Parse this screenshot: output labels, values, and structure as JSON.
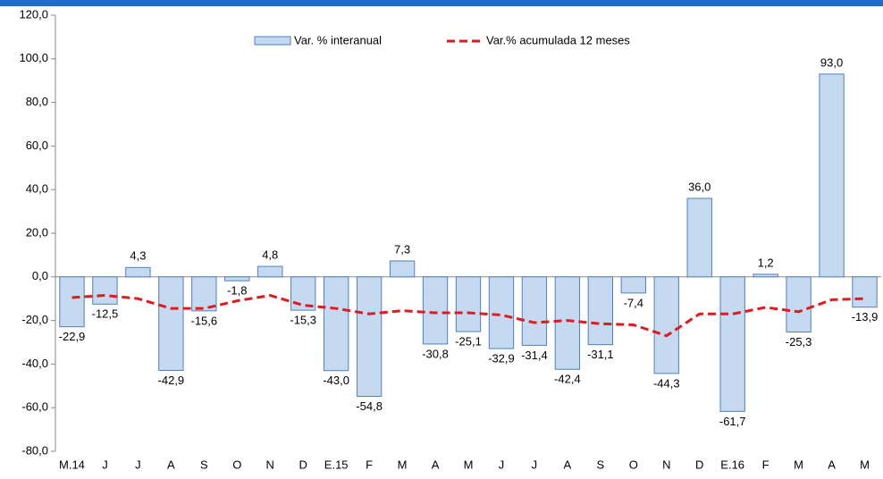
{
  "chart_data": {
    "type": "bar",
    "categories": [
      "M.14",
      "J",
      "J",
      "A",
      "S",
      "O",
      "N",
      "D",
      "E.15",
      "F",
      "M",
      "A",
      "M",
      "J",
      "J",
      "A",
      "S",
      "O",
      "N",
      "D",
      "E.16",
      "F",
      "M",
      "A",
      "M"
    ],
    "series": [
      {
        "name": "Var. % interanual",
        "type": "bar",
        "color": "#c5d9f1",
        "border": "#4f81bd",
        "values": [
          -22.9,
          -12.5,
          4.3,
          -42.9,
          -15.6,
          -1.8,
          4.8,
          -15.3,
          -43.0,
          -54.8,
          7.3,
          -30.8,
          -25.1,
          -32.9,
          -31.4,
          -42.4,
          -31.1,
          -7.4,
          -44.3,
          36.0,
          -61.7,
          1.2,
          -25.3,
          93.0,
          -13.9
        ],
        "value_labels": [
          "-22,9",
          "-12,5",
          "4,3",
          "-42,9",
          "-15,6",
          "-1,8",
          "4,8",
          "-15,3",
          "-43,0",
          "-54,8",
          "7,3",
          "-30,8",
          "-25,1",
          "-32,9",
          "-31,4",
          "-42,4",
          "-31,1",
          "-7,4",
          "-44,3",
          "36,0",
          "-61,7",
          "1,2",
          "-25,3",
          "93,0",
          "-13,9"
        ]
      },
      {
        "name": "Var.% acumulada 12 meses",
        "type": "line",
        "color": "#e31a1c",
        "values": [
          -9.5,
          -8.5,
          -10,
          -14.5,
          -14.5,
          -11,
          -8.5,
          -13,
          -14.5,
          -17,
          -15.5,
          -16.5,
          -16.5,
          -17.5,
          -21,
          -20,
          -21.5,
          -22,
          -27,
          -17,
          -17,
          -14,
          -16,
          -10.5,
          -10
        ]
      }
    ],
    "ylim": [
      -80,
      120
    ],
    "yticks": [
      {
        "value": -80,
        "label": "-80,0"
      },
      {
        "value": -60,
        "label": "-60,0"
      },
      {
        "value": -40,
        "label": "-40,0"
      },
      {
        "value": -20,
        "label": "-20,0"
      },
      {
        "value": 0,
        "label": "0,0"
      },
      {
        "value": 20,
        "label": "20,0"
      },
      {
        "value": 40,
        "label": "40,0"
      },
      {
        "value": 60,
        "label": "60,0"
      },
      {
        "value": 80,
        "label": "80,0"
      },
      {
        "value": 100,
        "label": "100,0"
      },
      {
        "value": 120,
        "label": "120,0"
      }
    ]
  }
}
